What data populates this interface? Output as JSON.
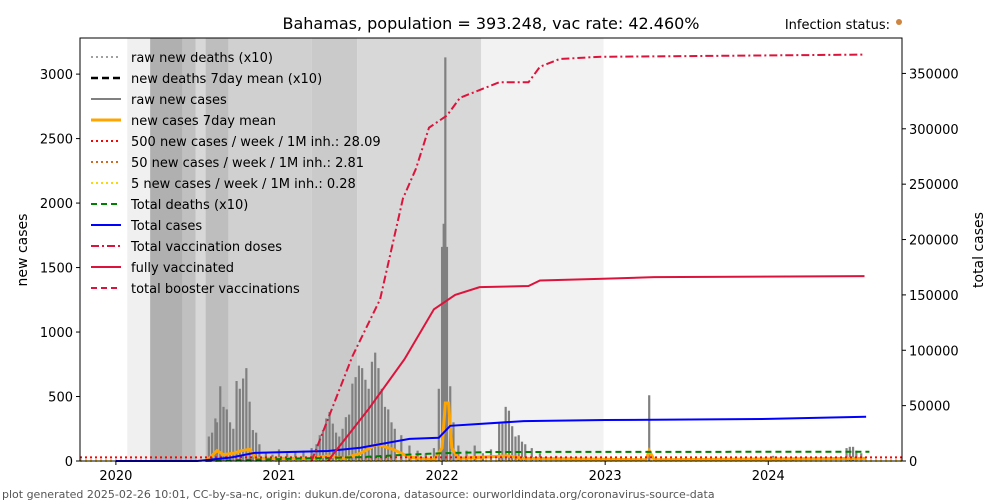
{
  "chart_data": {
    "type": "line",
    "title": "Bahamas, population = 393.248, vac rate: 42.460%",
    "status_label": "Infection status:",
    "status_color": "#cd853f",
    "ylabel": "new cases",
    "ylabel_right": "total cases",
    "footer": "plot generated 2025-02-26 10:01, CC-by-sa-nc, origin: dukun.de/corona, datasource: ourworldindata.org/coronavirus-source-data",
    "xlim": [
      2019.78,
      2024.82
    ],
    "ylim": [
      0,
      3280
    ],
    "ylim_right": [
      0,
      382000
    ],
    "x_ticks": [
      {
        "v": 2020,
        "label": "2020"
      },
      {
        "v": 2021,
        "label": "2021"
      },
      {
        "v": 2022,
        "label": "2022"
      },
      {
        "v": 2023,
        "label": "2023"
      },
      {
        "v": 2024,
        "label": "2024"
      }
    ],
    "y_ticks": [
      {
        "v": 0,
        "label": "0"
      },
      {
        "v": 500,
        "label": "500"
      },
      {
        "v": 1000,
        "label": "1000"
      },
      {
        "v": 1500,
        "label": "1500"
      },
      {
        "v": 2000,
        "label": "2000"
      },
      {
        "v": 2500,
        "label": "2500"
      },
      {
        "v": 3000,
        "label": "3000"
      }
    ],
    "y_ticks_right": [
      {
        "v": 0,
        "label": "0"
      },
      {
        "v": 50000,
        "label": "50000"
      },
      {
        "v": 100000,
        "label": "100000"
      },
      {
        "v": 150000,
        "label": "150000"
      },
      {
        "v": 200000,
        "label": "200000"
      },
      {
        "v": 250000,
        "label": "250000"
      },
      {
        "v": 300000,
        "label": "300000"
      },
      {
        "v": 350000,
        "label": "350000"
      }
    ],
    "background_bands": [
      [
        2020.07,
        2020.21,
        "#f0f0f0"
      ],
      [
        2020.21,
        2020.41,
        "#b0b0b0"
      ],
      [
        2020.41,
        2020.49,
        "#c0c0c0"
      ],
      [
        2020.49,
        2020.55,
        "#d8d8d8"
      ],
      [
        2020.55,
        2020.69,
        "#bebebe"
      ],
      [
        2020.69,
        2021.2,
        "#d0d0d0"
      ],
      [
        2021.2,
        2021.48,
        "#cacaca"
      ],
      [
        2021.48,
        2022.24,
        "#d8d8d8"
      ],
      [
        2022.24,
        2022.99,
        "#f2f2f2"
      ]
    ],
    "legend": [
      {
        "label": "raw new deaths (x10)",
        "color": "#808080",
        "dash": "2,3",
        "width": 1.5
      },
      {
        "label": "new deaths 7day mean (x10)",
        "color": "#000000",
        "dash": "7,4",
        "width": 2.5
      },
      {
        "label": "raw new cases",
        "color": "#808080",
        "dash": "",
        "width": 2
      },
      {
        "label": "new cases 7day mean",
        "color": "#ffa500",
        "dash": "",
        "width": 3
      },
      {
        "label": "500 new cases / week / 1M inh.: 28.09",
        "color": "#ff0000",
        "dash": "2,3",
        "width": 2
      },
      {
        "label": "50 new cases / week / 1M inh.: 2.81",
        "color": "#d2691e",
        "dash": "2,3",
        "width": 2
      },
      {
        "label": "5 new cases / week / 1M inh.: 0.28",
        "color": "#ffd700",
        "dash": "2,3",
        "width": 2
      },
      {
        "label": "Total deaths (x10)",
        "color": "#008000",
        "dash": "6,4",
        "width": 2
      },
      {
        "label": "Total cases",
        "color": "#0000ff",
        "dash": "",
        "width": 2
      },
      {
        "label": "Total vaccination doses",
        "color": "#dc143c",
        "dash": "8,3,2,3",
        "width": 2
      },
      {
        "label": "fully vaccinated",
        "color": "#dc143c",
        "dash": "",
        "width": 2
      },
      {
        "label": "total booster vaccinations",
        "color": "#dc143c",
        "dash": "6,4",
        "width": 2
      }
    ],
    "thresholds": [
      28.09,
      2.81,
      0.28
    ],
    "raw_new_cases": [
      [
        2020.57,
        190
      ],
      [
        2020.59,
        220
      ],
      [
        2020.61,
        330
      ],
      [
        2020.62,
        300
      ],
      [
        2020.64,
        580
      ],
      [
        2020.66,
        420
      ],
      [
        2020.68,
        400
      ],
      [
        2020.7,
        300
      ],
      [
        2020.72,
        250
      ],
      [
        2020.74,
        620
      ],
      [
        2020.76,
        560
      ],
      [
        2020.78,
        640
      ],
      [
        2020.8,
        720
      ],
      [
        2020.82,
        460
      ],
      [
        2020.84,
        240
      ],
      [
        2020.86,
        220
      ],
      [
        2020.88,
        130
      ],
      [
        2020.92,
        60
      ],
      [
        2020.96,
        50
      ],
      [
        2021.0,
        90
      ],
      [
        2021.05,
        60
      ],
      [
        2021.1,
        70
      ],
      [
        2021.15,
        80
      ],
      [
        2021.2,
        100
      ],
      [
        2021.23,
        130
      ],
      [
        2021.25,
        200
      ],
      [
        2021.27,
        240
      ],
      [
        2021.29,
        330
      ],
      [
        2021.31,
        380
      ],
      [
        2021.33,
        290
      ],
      [
        2021.35,
        220
      ],
      [
        2021.37,
        190
      ],
      [
        2021.39,
        250
      ],
      [
        2021.41,
        340
      ],
      [
        2021.43,
        360
      ],
      [
        2021.45,
        600
      ],
      [
        2021.47,
        650
      ],
      [
        2021.49,
        740
      ],
      [
        2021.51,
        720
      ],
      [
        2021.53,
        630
      ],
      [
        2021.55,
        560
      ],
      [
        2021.57,
        770
      ],
      [
        2021.59,
        840
      ],
      [
        2021.61,
        720
      ],
      [
        2021.63,
        560
      ],
      [
        2021.65,
        420
      ],
      [
        2021.67,
        400
      ],
      [
        2021.69,
        300
      ],
      [
        2021.71,
        250
      ],
      [
        2021.75,
        200
      ],
      [
        2021.8,
        120
      ],
      [
        2021.85,
        80
      ],
      [
        2021.9,
        60
      ],
      [
        2021.95,
        100
      ],
      [
        2021.98,
        560
      ],
      [
        2022.0,
        1660
      ],
      [
        2022.01,
        1840
      ],
      [
        2022.02,
        3130
      ],
      [
        2022.03,
        1660
      ],
      [
        2022.05,
        580
      ],
      [
        2022.07,
        300
      ],
      [
        2022.1,
        120
      ],
      [
        2022.15,
        80
      ],
      [
        2022.2,
        120
      ],
      [
        2022.25,
        60
      ],
      [
        2022.3,
        90
      ],
      [
        2022.35,
        300
      ],
      [
        2022.37,
        290
      ],
      [
        2022.39,
        420
      ],
      [
        2022.41,
        390
      ],
      [
        2022.43,
        270
      ],
      [
        2022.45,
        190
      ],
      [
        2022.47,
        200
      ],
      [
        2022.49,
        150
      ],
      [
        2022.51,
        130
      ],
      [
        2022.55,
        100
      ],
      [
        2022.6,
        60
      ],
      [
        2022.7,
        40
      ],
      [
        2022.8,
        30
      ],
      [
        2022.9,
        20
      ],
      [
        2023.1,
        15
      ],
      [
        2023.27,
        510
      ],
      [
        2023.5,
        10
      ],
      [
        2024.03,
        40
      ],
      [
        2024.06,
        25
      ],
      [
        2024.1,
        20
      ],
      [
        2024.15,
        20
      ],
      [
        2024.2,
        15
      ],
      [
        2024.48,
        100
      ],
      [
        2024.5,
        110
      ],
      [
        2024.52,
        110
      ],
      [
        2024.54,
        80
      ],
      [
        2024.57,
        60
      ]
    ],
    "new_cases_7day_mean": [
      [
        2020.55,
        0
      ],
      [
        2020.58,
        30
      ],
      [
        2020.62,
        80
      ],
      [
        2020.66,
        50
      ],
      [
        2020.72,
        60
      ],
      [
        2020.77,
        80
      ],
      [
        2020.82,
        90
      ],
      [
        2020.86,
        20
      ],
      [
        2021.0,
        20
      ],
      [
        2021.2,
        20
      ],
      [
        2021.3,
        40
      ],
      [
        2021.4,
        20
      ],
      [
        2021.45,
        40
      ],
      [
        2021.5,
        60
      ],
      [
        2021.6,
        130
      ],
      [
        2021.7,
        90
      ],
      [
        2021.8,
        30
      ],
      [
        2021.95,
        10
      ],
      [
        2022.0,
        100
      ],
      [
        2022.02,
        450
      ],
      [
        2022.04,
        450
      ],
      [
        2022.06,
        100
      ],
      [
        2022.1,
        20
      ],
      [
        2022.4,
        40
      ],
      [
        2022.5,
        20
      ],
      [
        2023.25,
        10
      ],
      [
        2023.27,
        80
      ],
      [
        2023.3,
        10
      ],
      [
        2024.6,
        20
      ]
    ],
    "total_deaths_x10": [
      [
        2020.55,
        0
      ],
      [
        2021.0,
        15
      ],
      [
        2021.5,
        30
      ],
      [
        2021.8,
        50
      ],
      [
        2022.0,
        60
      ],
      [
        2022.3,
        70
      ],
      [
        2024.62,
        72
      ]
    ],
    "total_cases": [
      [
        2020.0,
        0
      ],
      [
        2020.5,
        0
      ],
      [
        2020.7,
        3000
      ],
      [
        2020.85,
        7300
      ],
      [
        2021.3,
        9000
      ],
      [
        2021.5,
        12000
      ],
      [
        2021.8,
        20000
      ],
      [
        2021.98,
        21000
      ],
      [
        2022.05,
        31800
      ],
      [
        2022.5,
        36000
      ],
      [
        2023.0,
        37000
      ],
      [
        2024.0,
        38000
      ],
      [
        2024.6,
        40000
      ]
    ],
    "total_vaccination_doses": [
      [
        2021.2,
        0
      ],
      [
        2021.45,
        94500
      ],
      [
        2021.62,
        146000
      ],
      [
        2021.76,
        237000
      ],
      [
        2021.84,
        264000
      ],
      [
        2021.92,
        301000
      ],
      [
        2022.03,
        312000
      ],
      [
        2022.11,
        328000
      ],
      [
        2022.23,
        335000
      ],
      [
        2022.35,
        342000
      ],
      [
        2022.53,
        342000
      ],
      [
        2022.6,
        356000
      ],
      [
        2022.72,
        363000
      ],
      [
        2022.96,
        365000
      ],
      [
        2024.59,
        367000
      ]
    ],
    "fully_vaccinated": [
      [
        2021.3,
        0
      ],
      [
        2021.55,
        47000
      ],
      [
        2021.77,
        92000
      ],
      [
        2021.95,
        137000
      ],
      [
        2022.08,
        150000
      ],
      [
        2022.23,
        157000
      ],
      [
        2022.53,
        158000
      ],
      [
        2022.6,
        163000
      ],
      [
        2022.96,
        164500
      ],
      [
        2023.3,
        166000
      ],
      [
        2024.59,
        167000
      ]
    ]
  }
}
